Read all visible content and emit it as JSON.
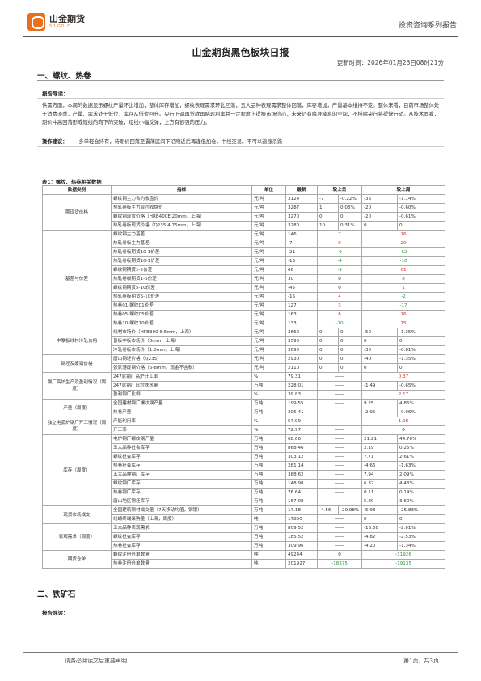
{
  "header": {
    "logo_cn": "山金期货",
    "logo_en": "SD GOLD",
    "right_text": "投资咨询系列报告"
  },
  "title": "山金期货黑色板块日报",
  "update_time": "更新时间：2026年01月23日08时21分",
  "section1": {
    "title": "一、螺纹、热卷",
    "guide_label": "报告导读：",
    "guide_text": "供需方面，本周的数据显示螺纹产量环比增加，整体库存增加，螺纹表观需求环比回落，五大品种表观需求整体回落，库存增加，产量基本维持不变。整体来看，目前市场整体处于消费淡季，产量、需求处于低位，库存从低位回升。央行下调再贷款再贴现利率并一定程度上提振市场信心，未来仍有降准降息的空间，不排除央行将提快行动。从技术面看，期价冲高回落形成短线的向下的突破，短线小幅反弹，上方有很强的压力。",
    "op_label": "操作建议：",
    "op_text": "多单轻仓持有，待期价回落至震荡区间下沿附近后再逢低加仓，中线交易。不可以追涨杀跌",
    "table_title": "表1：螺纹、热卷相关数据",
    "columns": [
      "数据类别",
      "指标",
      "单位",
      "最新",
      "较上日",
      "较上周"
    ],
    "groups": [
      {
        "category": "期现货价格",
        "rows": [
          {
            "ind": "螺纹钢主力合约收盘价",
            "unit": "元/吨",
            "latest": "3124",
            "d1": "-7",
            "d2": "-0.22%",
            "w1": "-36",
            "w2": "-1.14%",
            "dc": "green",
            "wc": "green"
          },
          {
            "ind": "热轧卷板主力合约收盘价",
            "unit": "元/吨",
            "latest": "3287",
            "d1": "1",
            "d2": "0.03%",
            "w1": "-20",
            "w2": "-0.60%",
            "dc": "red",
            "wc": "green"
          },
          {
            "ind": "螺纹钢现货价格（HRB400E 20mm，上海）",
            "unit": "元/吨",
            "latest": "3270",
            "d1": "0",
            "d2": "0",
            "w1": "-20",
            "w2": "-0.61%",
            "dc": "",
            "wc": "green"
          },
          {
            "ind": "热轧卷板现货价格（Q235 4.75mm，上海）",
            "unit": "元/吨",
            "latest": "3280",
            "d1": "10",
            "d2": "0.31%",
            "w1": "0",
            "w2": "0",
            "dc": "red",
            "wc": ""
          }
        ]
      },
      {
        "category": "基差与价差",
        "rows": [
          {
            "ind": "螺纹钢主力基差",
            "unit": "元/吨",
            "latest": "146",
            "d1": "7",
            "d2": "",
            "w1": "16",
            "w2": "",
            "dc": "red",
            "wc": "red"
          },
          {
            "ind": "热轧卷板主力基差",
            "unit": "元/吨",
            "latest": "-7",
            "d1": "9",
            "d2": "",
            "w1": "20",
            "w2": "",
            "dc": "red",
            "wc": "red"
          },
          {
            "ind": "热轧卷板期货10-1价差",
            "unit": "元/吨",
            "latest": "-21",
            "d1": "-9",
            "d2": "",
            "w1": "-62",
            "w2": "",
            "dc": "green",
            "wc": "green"
          },
          {
            "ind": "热轧卷板期货10-1价差",
            "unit": "元/吨",
            "latest": "-15",
            "d1": "-4",
            "d2": "",
            "w1": "-10",
            "w2": "",
            "dc": "green",
            "wc": "green"
          },
          {
            "ind": "螺纹钢期货1-5价差",
            "unit": "元/吨",
            "latest": "66",
            "d1": "-9",
            "d2": "",
            "w1": "61",
            "w2": "",
            "dc": "green",
            "wc": "red"
          },
          {
            "ind": "热轧卷板期货1-5价差",
            "unit": "元/吨",
            "latest": "30",
            "d1": "0",
            "d2": "",
            "w1": "8",
            "w2": "",
            "dc": "",
            "wc": "red"
          },
          {
            "ind": "螺纹钢期货5-10价差",
            "unit": "元/吨",
            "latest": "-45",
            "d1": "0",
            "d2": "",
            "w1": "1",
            "w2": "",
            "dc": "",
            "wc": "red"
          },
          {
            "ind": "热轧卷板期货5-10价差",
            "unit": "元/吨",
            "latest": "-15",
            "d1": "4",
            "d2": "",
            "w1": "-2",
            "w2": "",
            "dc": "red",
            "wc": "green"
          },
          {
            "ind": "热卷01-螺纹01价差",
            "unit": "元/吨",
            "latest": "127",
            "d1": "3",
            "d2": "",
            "w1": "-17",
            "w2": "",
            "dc": "red",
            "wc": "green"
          },
          {
            "ind": "热卷05-螺纹05价差",
            "unit": "元/吨",
            "latest": "163",
            "d1": "6",
            "d2": "",
            "w1": "16",
            "w2": "",
            "dc": "red",
            "wc": "red"
          },
          {
            "ind": "热卷10-螺纹10价差",
            "unit": "元/吨",
            "latest": "133",
            "d1": "-10",
            "d2": "",
            "w1": "15",
            "w2": "",
            "dc": "green",
            "wc": "red"
          }
        ]
      },
      {
        "category": "中厚板线材冷轧价格",
        "rows": [
          {
            "ind": "线材市场价（HPB300 6.5mm，上海）",
            "unit": "元/吨",
            "latest": "3660",
            "d1": "0",
            "d2": "0",
            "w1": "-50",
            "w2": "-1.35%",
            "dc": "",
            "wc": "green"
          },
          {
            "ind": "普板中板市场价（8mm，上海）",
            "unit": "元/吨",
            "latest": "3590",
            "d1": "0",
            "d2": "0",
            "w1": "0",
            "w2": "0",
            "dc": "",
            "wc": ""
          },
          {
            "ind": "冷轧卷板市场价（1.0mm，上海）",
            "unit": "元/吨",
            "latest": "3690",
            "d1": "0",
            "d2": "0",
            "w1": "-30",
            "w2": "-0.81%",
            "dc": "",
            "wc": "green"
          }
        ]
      },
      {
        "category": "钢坯及废钢价格",
        "rows": [
          {
            "ind": "唐山钢坯价格（Q235）",
            "unit": "元/吨",
            "latest": "2930",
            "d1": "0",
            "d2": "0",
            "w1": "-40",
            "w2": "-1.35%",
            "dc": "",
            "wc": "green"
          },
          {
            "ind": "张家港废钢价格（6-8mm，现金不含税）",
            "unit": "元/吨",
            "latest": "2110",
            "d1": "0",
            "d2": "0",
            "w1": "0",
            "w2": "0",
            "dc": "",
            "wc": ""
          }
        ]
      },
      {
        "category": "钢厂高炉生产及盈利情况（周度）",
        "rows": [
          {
            "ind": "247家钢厂高炉开工率",
            "unit": "%",
            "latest": "79.31",
            "d1": "——",
            "d2": "",
            "w1": "0.37",
            "w2": "",
            "dc": "",
            "wc": "red",
            "dash": true
          },
          {
            "ind": "247家钢厂日均铁水量",
            "unit": "万吨",
            "latest": "228.01",
            "d1": "——",
            "d2": "",
            "w1": "-1.49",
            "w2": "-0.65%",
            "dc": "",
            "wc": "green",
            "dash": true,
            "split": true
          },
          {
            "ind": "盈利钢厂比例",
            "unit": "%",
            "latest": "39.83",
            "d1": "——",
            "d2": "",
            "w1": "2.17",
            "w2": "",
            "dc": "",
            "wc": "red",
            "dash": true
          }
        ]
      },
      {
        "category": "产量（周度）",
        "rows": [
          {
            "ind": "全国建材钢厂螺纹钢产量",
            "unit": "万吨",
            "latest": "199.55",
            "d1": "——",
            "d2": "",
            "w1": "9.25",
            "w2": "4.86%",
            "dc": "",
            "wc": "red",
            "dash": true,
            "split": true
          },
          {
            "ind": "热卷产量",
            "unit": "万吨",
            "latest": "305.41",
            "d1": "——",
            "d2": "",
            "w1": "-2.95",
            "w2": "-0.96%",
            "dc": "",
            "wc": "green",
            "dash": true,
            "split": true
          }
        ]
      },
      {
        "category": "独立电弧炉钢厂开工情况（周度）",
        "rows": [
          {
            "ind": "产能利用率",
            "unit": "%",
            "latest": "57.99",
            "d1": "——",
            "d2": "",
            "w1": "1.08",
            "w2": "",
            "dc": "",
            "wc": "red",
            "dash": true
          },
          {
            "ind": "开工率",
            "unit": "%",
            "latest": "72.97",
            "d1": "——",
            "d2": "",
            "w1": "0",
            "w2": "",
            "dc": "",
            "wc": "",
            "dash": true
          }
        ]
      },
      {
        "category": "库存（周度）",
        "rows": [
          {
            "ind": "电炉钢厂螺纹钢产量",
            "unit": "万吨",
            "latest": "68.66",
            "d1": "——",
            "d2": "",
            "w1": "21.21",
            "w2": "44.70%",
            "dc": "",
            "wc": "red",
            "dash": true,
            "split": true
          },
          {
            "ind": "五大品种社会库存",
            "unit": "万吨",
            "latest": "868.46",
            "d1": "——",
            "d2": "",
            "w1": "2.19",
            "w2": "0.25%",
            "dc": "",
            "wc": "red",
            "dash": true,
            "split": true
          },
          {
            "ind": "螺纹社会库存",
            "unit": "万吨",
            "latest": "303.12",
            "d1": "——",
            "d2": "",
            "w1": "7.71",
            "w2": "2.61%",
            "dc": "",
            "wc": "red",
            "dash": true,
            "split": true
          },
          {
            "ind": "热卷社会库存",
            "unit": "万吨",
            "latest": "281.14",
            "d1": "——",
            "d2": "",
            "w1": "-4.66",
            "w2": "-1.63%",
            "dc": "",
            "wc": "green",
            "dash": true,
            "split": true
          },
          {
            "ind": "五大品种钢厂库存",
            "unit": "万吨",
            "latest": "388.62",
            "d1": "——",
            "d2": "",
            "w1": "7.94",
            "w2": "2.09%",
            "dc": "",
            "wc": "red",
            "dash": true,
            "split": true
          },
          {
            "ind": "螺纹钢厂库存",
            "unit": "万吨",
            "latest": "148.98",
            "d1": "——",
            "d2": "",
            "w1": "6.32",
            "w2": "4.43%",
            "dc": "",
            "wc": "red",
            "dash": true,
            "split": true
          },
          {
            "ind": "热卷钢厂库存",
            "unit": "万吨",
            "latest": "76.64",
            "d1": "——",
            "d2": "",
            "w1": "0.11",
            "w2": "0.14%",
            "dc": "",
            "wc": "red",
            "dash": true,
            "split": true
          },
          {
            "ind": "唐山地区钢坯库存",
            "unit": "万吨",
            "latest": "167.08",
            "d1": "——",
            "d2": "",
            "w1": "5.80",
            "w2": "3.60%",
            "dc": "",
            "wc": "red",
            "dash": true,
            "split": true
          }
        ]
      },
      {
        "category": "现货市场成交",
        "rows": [
          {
            "ind": "全国建筑钢材成交量（7天移动均值，钢银）",
            "unit": "万吨",
            "latest": "17.18",
            "d1": "-4.56",
            "d2": "-20.98%",
            "w1": "-5.98",
            "w2": "-25.83%",
            "dc": "green",
            "wc": "green",
            "split": true
          },
          {
            "ind": "线螺终端采购量（上海，周度）",
            "unit": "吨",
            "latest": "17850",
            "d1": "——",
            "d2": "",
            "w1": "0",
            "w2": "0",
            "dc": "",
            "wc": "",
            "dash": true,
            "split": true
          }
        ]
      },
      {
        "category": "表观需求（周度）",
        "rows": [
          {
            "ind": "五大品种表观需求",
            "unit": "万吨",
            "latest": "809.52",
            "d1": "——",
            "d2": "",
            "w1": "-16.60",
            "w2": "-2.01%",
            "dc": "",
            "wc": "green",
            "dash": true,
            "split": true
          },
          {
            "ind": "螺纹社会库存",
            "unit": "万吨",
            "latest": "185.52",
            "d1": "——",
            "d2": "",
            "w1": "-4.82",
            "w2": "-2.53%",
            "dc": "",
            "wc": "green",
            "dash": true,
            "split": true
          },
          {
            "ind": "热卷社会库存",
            "unit": "万吨",
            "latest": "309.96",
            "d1": "——",
            "d2": "",
            "w1": "-4.20",
            "w2": "-1.34%",
            "dc": "",
            "wc": "green",
            "dash": true,
            "split": true
          }
        ]
      },
      {
        "category": "期货仓单",
        "rows": [
          {
            "ind": "螺纹注册仓单数量",
            "unit": "吨",
            "latest": "49244",
            "d1": "0",
            "d2": "",
            "w1": "-31926",
            "w2": "",
            "dc": "",
            "wc": "green"
          },
          {
            "ind": "热卷注册仓单数量",
            "unit": "吨",
            "latest": "201927",
            "d1": "-18375",
            "d2": "",
            "w1": "-19135",
            "w2": "",
            "dc": "green",
            "wc": "green"
          }
        ]
      }
    ]
  },
  "section2": {
    "title": "二、铁矿石",
    "guide_label": "报告导读："
  },
  "footer": {
    "left": "请务必阅读文后重要声明",
    "right": "第1页，共3页"
  },
  "colors": {
    "up": "#d62a2a",
    "down": "#1f9a3a",
    "brand": "#e8701a"
  }
}
